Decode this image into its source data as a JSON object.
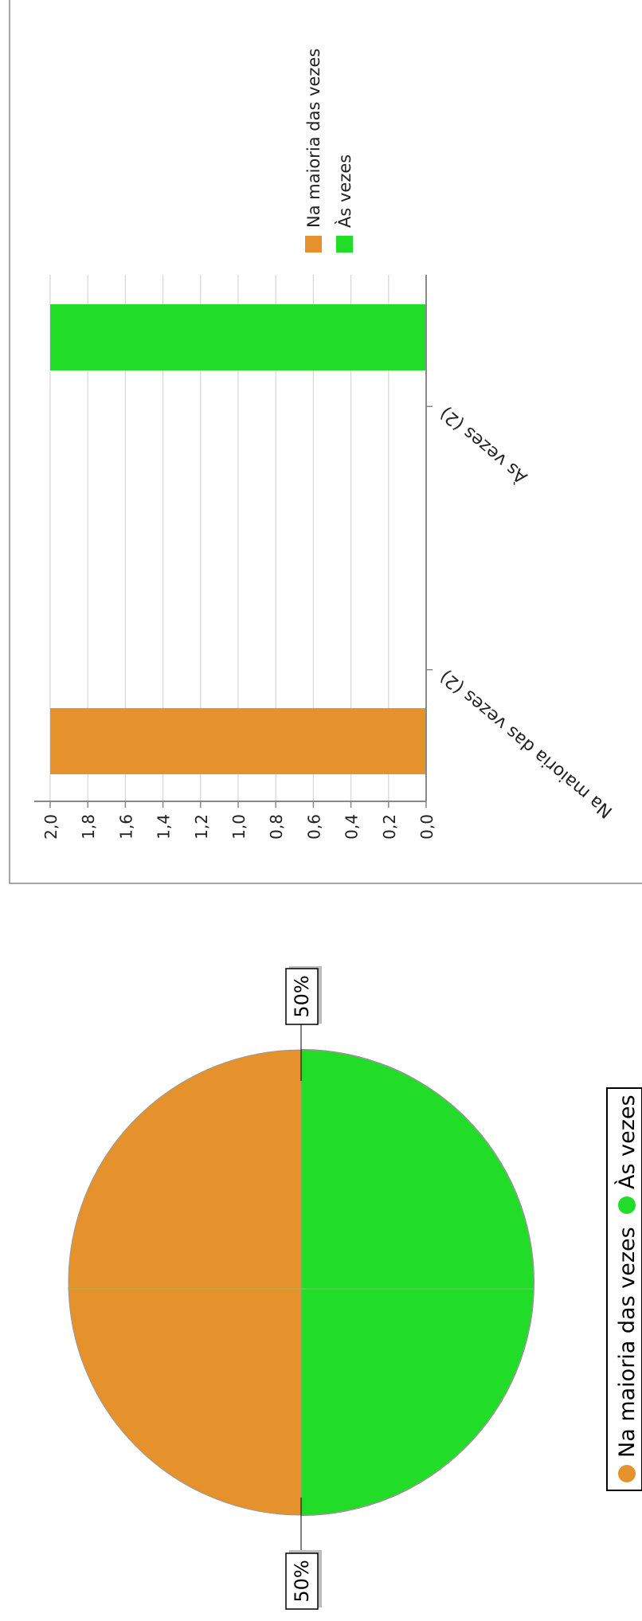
{
  "colors": {
    "orange": "#e5922c",
    "green": "#22dd27",
    "grid": "#d6d6d6",
    "axis": "#888888",
    "shadow": "#808080"
  },
  "chart_data": [
    {
      "type": "bar",
      "orientation": "rotated-180",
      "categories": [
        "Na maioria das vezes (2)",
        "Às vezes (2)"
      ],
      "values": [
        2,
        2
      ],
      "ylim": [
        0,
        2
      ],
      "yticks": [
        "0,0",
        "0,2",
        "0,4",
        "0,6",
        "0,8",
        "1,0",
        "1,2",
        "1,4",
        "1,6",
        "1,8",
        "2,0"
      ],
      "grid": true,
      "legend": {
        "placement": "top-right",
        "entries": [
          {
            "label": "Na maioria das vezes",
            "color": "#e5922c"
          },
          {
            "label": "Às vezes",
            "color": "#22dd27"
          }
        ]
      }
    },
    {
      "type": "pie",
      "orientation": "rotated-90",
      "slices": [
        {
          "label": "Na maioria das vezes",
          "value": 50,
          "color": "#e5922c"
        },
        {
          "label": "Às vezes",
          "value": 50,
          "color": "#22dd27"
        }
      ],
      "data_labels": [
        "50%",
        "50%"
      ],
      "legend": {
        "placement": "bottom",
        "entries": [
          {
            "label": "Na maioria das vezes",
            "color": "#e5922c"
          },
          {
            "label": "Às vezes",
            "color": "#22dd27"
          }
        ]
      }
    }
  ]
}
